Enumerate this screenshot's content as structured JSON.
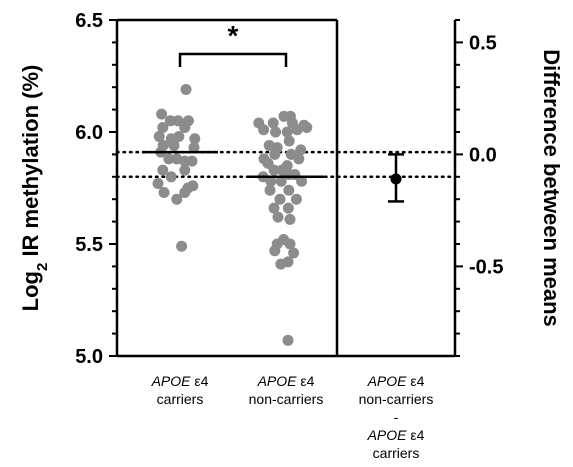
{
  "chart_data": {
    "type": "scatter",
    "title": "",
    "ylabel_left": {
      "prefix": "Log",
      "subscript": "2",
      "suffix": " IR methylation (%)"
    },
    "ylabel_right": "Difference between means",
    "ylim_left": [
      5.0,
      6.5
    ],
    "yticks_left": [
      "5.0",
      "5.5",
      "6.0",
      "6.5"
    ],
    "ylim_right": [
      -0.9,
      0.6
    ],
    "yticks_right": [
      "0.5",
      "0.0",
      "-0.5"
    ],
    "categories": [
      {
        "lines": [
          {
            "italic": "APOE",
            "rest": " ε4"
          },
          {
            "italic": "",
            "rest": "carriers"
          }
        ]
      },
      {
        "lines": [
          {
            "italic": "APOE",
            "rest": " ε4"
          },
          {
            "italic": "",
            "rest": "non-carriers"
          }
        ]
      },
      {
        "lines": [
          {
            "italic": "APOE",
            "rest": " ε4"
          },
          {
            "italic": "",
            "rest": "non-carriers"
          },
          {
            "italic": "",
            "rest": "-"
          },
          {
            "italic": "APOE",
            "rest": " ε4"
          },
          {
            "italic": "",
            "rest": "carriers"
          }
        ]
      }
    ],
    "significance": "*",
    "series": [
      {
        "means": 5.91,
        "points": [
          [
            -0.46,
            6.08
          ],
          [
            0.15,
            6.19
          ],
          [
            -0.24,
            6.05
          ],
          [
            -0.05,
            6.05
          ],
          [
            0.21,
            6.05
          ],
          [
            -0.43,
            6.02
          ],
          [
            0.12,
            6.02
          ],
          [
            -0.52,
            5.98
          ],
          [
            -0.22,
            5.97
          ],
          [
            -0.03,
            5.98
          ],
          [
            0.37,
            5.97
          ],
          [
            -0.42,
            5.94
          ],
          [
            -0.15,
            5.94
          ],
          [
            0.35,
            5.93
          ],
          [
            -0.48,
            5.91
          ],
          [
            -0.28,
            5.88
          ],
          [
            -0.08,
            5.88
          ],
          [
            0.12,
            5.87
          ],
          [
            0.3,
            5.87
          ],
          [
            -0.43,
            5.83
          ],
          [
            0.12,
            5.83
          ],
          [
            -0.22,
            5.8
          ],
          [
            -0.55,
            5.77
          ],
          [
            0.32,
            5.76
          ],
          [
            -0.4,
            5.73
          ],
          [
            0.12,
            5.73
          ],
          [
            0.2,
            5.75
          ],
          [
            -0.08,
            5.7
          ],
          [
            0.04,
            5.49
          ]
        ]
      },
      {
        "means": 5.8,
        "points": [
          [
            -0.68,
            6.04
          ],
          [
            -0.32,
            6.04
          ],
          [
            -0.05,
            6.07
          ],
          [
            0.11,
            6.07
          ],
          [
            0.16,
            6.04
          ],
          [
            0.45,
            6.03
          ],
          [
            0.52,
            6.02
          ],
          [
            -0.56,
            6.01
          ],
          [
            -0.26,
            6.0
          ],
          [
            0.03,
            6.0
          ],
          [
            0.28,
            6.01
          ],
          [
            0.08,
            5.96
          ],
          [
            -0.42,
            5.94
          ],
          [
            -0.22,
            5.93
          ],
          [
            0.37,
            5.92
          ],
          [
            -0.28,
            5.9
          ],
          [
            0.13,
            5.9
          ],
          [
            0.32,
            5.88
          ],
          [
            -0.55,
            5.88
          ],
          [
            -0.45,
            5.86
          ],
          [
            0.03,
            5.85
          ],
          [
            -0.3,
            5.83
          ],
          [
            -0.1,
            5.83
          ],
          [
            0.08,
            5.81
          ],
          [
            0.22,
            5.81
          ],
          [
            -0.57,
            5.8
          ],
          [
            -0.38,
            5.78
          ],
          [
            0.39,
            5.78
          ],
          [
            -0.12,
            5.78
          ],
          [
            -0.4,
            5.74
          ],
          [
            0.07,
            5.74
          ],
          [
            -0.15,
            5.7
          ],
          [
            0.26,
            5.7
          ],
          [
            -0.3,
            5.66
          ],
          [
            0.06,
            5.66
          ],
          [
            -0.2,
            5.62
          ],
          [
            0.1,
            5.61
          ],
          [
            -0.06,
            5.52
          ],
          [
            -0.22,
            5.5
          ],
          [
            0.1,
            5.5
          ],
          [
            -0.28,
            5.47
          ],
          [
            0.19,
            5.46
          ],
          [
            0.05,
            5.42
          ],
          [
            -0.13,
            5.41
          ],
          [
            0.05,
            5.07
          ]
        ]
      }
    ],
    "difference": {
      "mean": -0.11,
      "ci": [
        -0.21,
        0.0
      ]
    },
    "reference_lines_left": [
      5.91,
      5.8
    ],
    "colors": {
      "points": "#8c8c8c",
      "lines": "#000000"
    }
  }
}
